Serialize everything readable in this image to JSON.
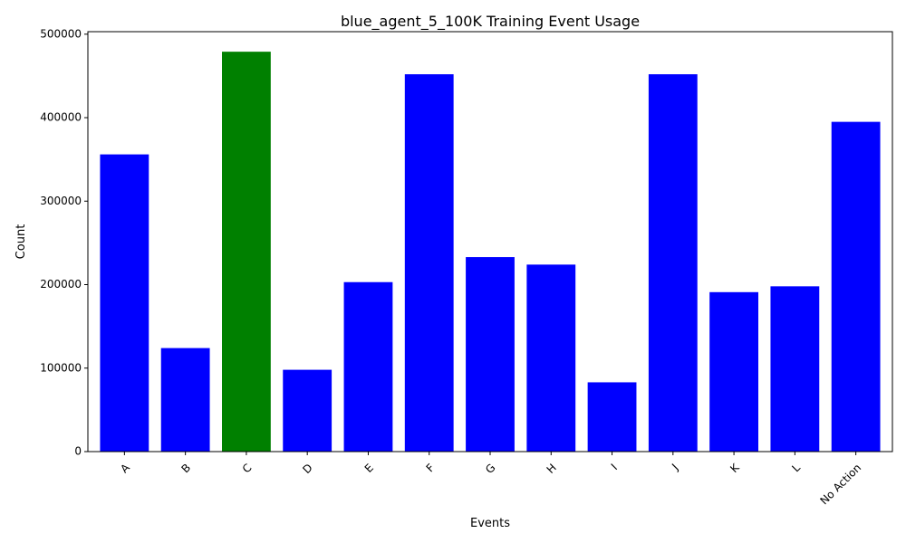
{
  "chart_data": {
    "type": "bar",
    "title": "blue_agent_5_100K Training Event Usage",
    "xlabel": "Events",
    "ylabel": "Count",
    "categories": [
      "A",
      "B",
      "C",
      "D",
      "E",
      "F",
      "G",
      "H",
      "I",
      "J",
      "K",
      "L",
      "No Action"
    ],
    "values": [
      356000,
      124000,
      479000,
      98000,
      203000,
      452000,
      233000,
      224000,
      83000,
      452000,
      191000,
      198000,
      395000
    ],
    "ylim": [
      0,
      503000
    ],
    "yticks": [
      0,
      100000,
      200000,
      300000,
      400000,
      500000
    ],
    "grid": false,
    "legend": "none",
    "colors": {
      "default": "#0000ff",
      "highlight": "#008000"
    },
    "highlight_index": 2,
    "x_tick_rotation": -45
  }
}
